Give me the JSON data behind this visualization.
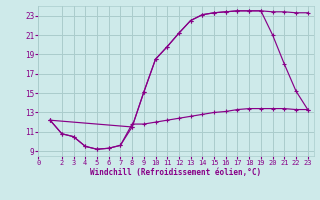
{
  "xlabel": "Windchill (Refroidissement éolien,°C)",
  "bg_color": "#ceeaea",
  "grid_color": "#aacccc",
  "line_color": "#880088",
  "xlim": [
    0,
    23.5
  ],
  "ylim": [
    8.5,
    24.0
  ],
  "xticks": [
    0,
    2,
    3,
    4,
    5,
    6,
    7,
    8,
    9,
    10,
    11,
    12,
    13,
    14,
    15,
    16,
    17,
    18,
    19,
    20,
    21,
    22,
    23
  ],
  "yticks": [
    9,
    11,
    13,
    15,
    17,
    19,
    21,
    23
  ],
  "line1_x": [
    1,
    2,
    3,
    4,
    5,
    6,
    7,
    8,
    9,
    10,
    11,
    12,
    13,
    14,
    15,
    16,
    17,
    18,
    19,
    20,
    21,
    22,
    23
  ],
  "line1_y": [
    12.2,
    10.8,
    10.5,
    9.5,
    9.2,
    9.3,
    9.6,
    11.5,
    15.1,
    18.5,
    19.8,
    21.2,
    22.5,
    23.1,
    23.3,
    23.4,
    23.5,
    23.5,
    23.5,
    23.4,
    23.4,
    23.3,
    23.3
  ],
  "line2_x": [
    1,
    2,
    3,
    4,
    5,
    6,
    7,
    8,
    9,
    10,
    11,
    12,
    13,
    14,
    15,
    16,
    17,
    18,
    19,
    20,
    21,
    22,
    23
  ],
  "line2_y": [
    12.2,
    10.8,
    10.5,
    9.5,
    9.2,
    9.3,
    9.6,
    11.8,
    11.8,
    12.0,
    12.2,
    12.4,
    12.6,
    12.8,
    13.0,
    13.1,
    13.3,
    13.4,
    13.4,
    13.4,
    13.4,
    13.3,
    13.3
  ],
  "line3_x": [
    1,
    8,
    9,
    10,
    11,
    12,
    13,
    14,
    15,
    16,
    17,
    18,
    19,
    20,
    21,
    22,
    23
  ],
  "line3_y": [
    12.2,
    11.5,
    15.1,
    18.5,
    19.8,
    21.2,
    22.5,
    23.1,
    23.3,
    23.4,
    23.5,
    23.5,
    23.5,
    21.0,
    18.0,
    15.2,
    13.3
  ]
}
